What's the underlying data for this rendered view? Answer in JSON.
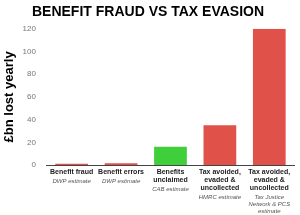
{
  "chart_data": {
    "type": "bar",
    "title": "BENEFIT FRAUD VS TAX EVASION",
    "ylabel": "£bn lost yearly",
    "categories": [
      "Benefit fraud",
      "Benefit errors",
      "Benefits unclaimed",
      "Tax avoided, evaded & uncollected",
      "Tax avoided, evaded & uncollected"
    ],
    "sources": [
      "DWP estimate",
      "DWP estimate",
      "CAB estimate",
      "HMRC estimate",
      "Tax Justice Network & PCS estimate"
    ],
    "values": [
      1.2,
      1.6,
      16,
      35,
      120
    ],
    "colors": [
      "#e0514a",
      "#e0514a",
      "#3fcf3a",
      "#e0514a",
      "#e0514a"
    ],
    "ylim": [
      0,
      120
    ],
    "yticks": [
      0,
      20,
      40,
      60,
      80,
      100,
      120
    ],
    "grid": false
  }
}
